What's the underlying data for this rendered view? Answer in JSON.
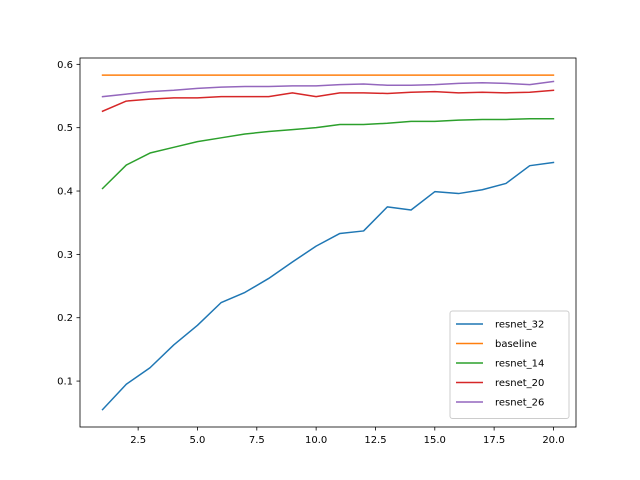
{
  "chart_data": {
    "type": "line",
    "title": "",
    "xlabel": "",
    "ylabel": "",
    "xlim": [
      0.05,
      20.95
    ],
    "ylim": [
      0.0275,
      0.61
    ],
    "xticks": [
      2.5,
      5.0,
      7.5,
      10.0,
      12.5,
      15.0,
      17.5,
      20.0
    ],
    "xtick_labels": [
      "2.5",
      "5.0",
      "7.5",
      "10.0",
      "12.5",
      "15.0",
      "17.5",
      "20.0"
    ],
    "yticks": [
      0.1,
      0.2,
      0.3,
      0.4,
      0.5,
      0.6
    ],
    "ytick_labels": [
      "0.1",
      "0.2",
      "0.3",
      "0.4",
      "0.5",
      "0.6"
    ],
    "grid": false,
    "legend_position": "bottom-right",
    "x": [
      1,
      2,
      3,
      4,
      5,
      6,
      7,
      8,
      9,
      10,
      11,
      12,
      13,
      14,
      15,
      16,
      17,
      18,
      19,
      20
    ],
    "series": [
      {
        "name": "resnet_32",
        "color": "#1f77b4",
        "values": [
          0.055,
          0.095,
          0.121,
          0.157,
          0.188,
          0.224,
          0.24,
          0.262,
          0.288,
          0.313,
          0.333,
          0.337,
          0.375,
          0.37,
          0.399,
          0.396,
          0.402,
          0.412,
          0.44,
          0.445
        ]
      },
      {
        "name": "baseline",
        "color": "#ff7f0e",
        "values": [
          0.583,
          0.583,
          0.583,
          0.583,
          0.583,
          0.583,
          0.583,
          0.583,
          0.583,
          0.583,
          0.583,
          0.583,
          0.583,
          0.583,
          0.583,
          0.583,
          0.583,
          0.583,
          0.583,
          0.583
        ]
      },
      {
        "name": "resnet_14",
        "color": "#2ca02c",
        "values": [
          0.404,
          0.441,
          0.46,
          0.469,
          0.478,
          0.484,
          0.49,
          0.494,
          0.497,
          0.5,
          0.505,
          0.505,
          0.507,
          0.51,
          0.51,
          0.512,
          0.513,
          0.513,
          0.514,
          0.514
        ]
      },
      {
        "name": "resnet_20",
        "color": "#d62728",
        "values": [
          0.526,
          0.542,
          0.545,
          0.547,
          0.547,
          0.549,
          0.549,
          0.549,
          0.555,
          0.549,
          0.555,
          0.555,
          0.554,
          0.556,
          0.557,
          0.555,
          0.556,
          0.555,
          0.556,
          0.559
        ]
      },
      {
        "name": "resnet_26",
        "color": "#9467bd",
        "values": [
          0.549,
          0.553,
          0.557,
          0.559,
          0.562,
          0.564,
          0.565,
          0.565,
          0.566,
          0.566,
          0.568,
          0.569,
          0.567,
          0.567,
          0.568,
          0.57,
          0.571,
          0.57,
          0.568,
          0.573
        ]
      }
    ]
  }
}
